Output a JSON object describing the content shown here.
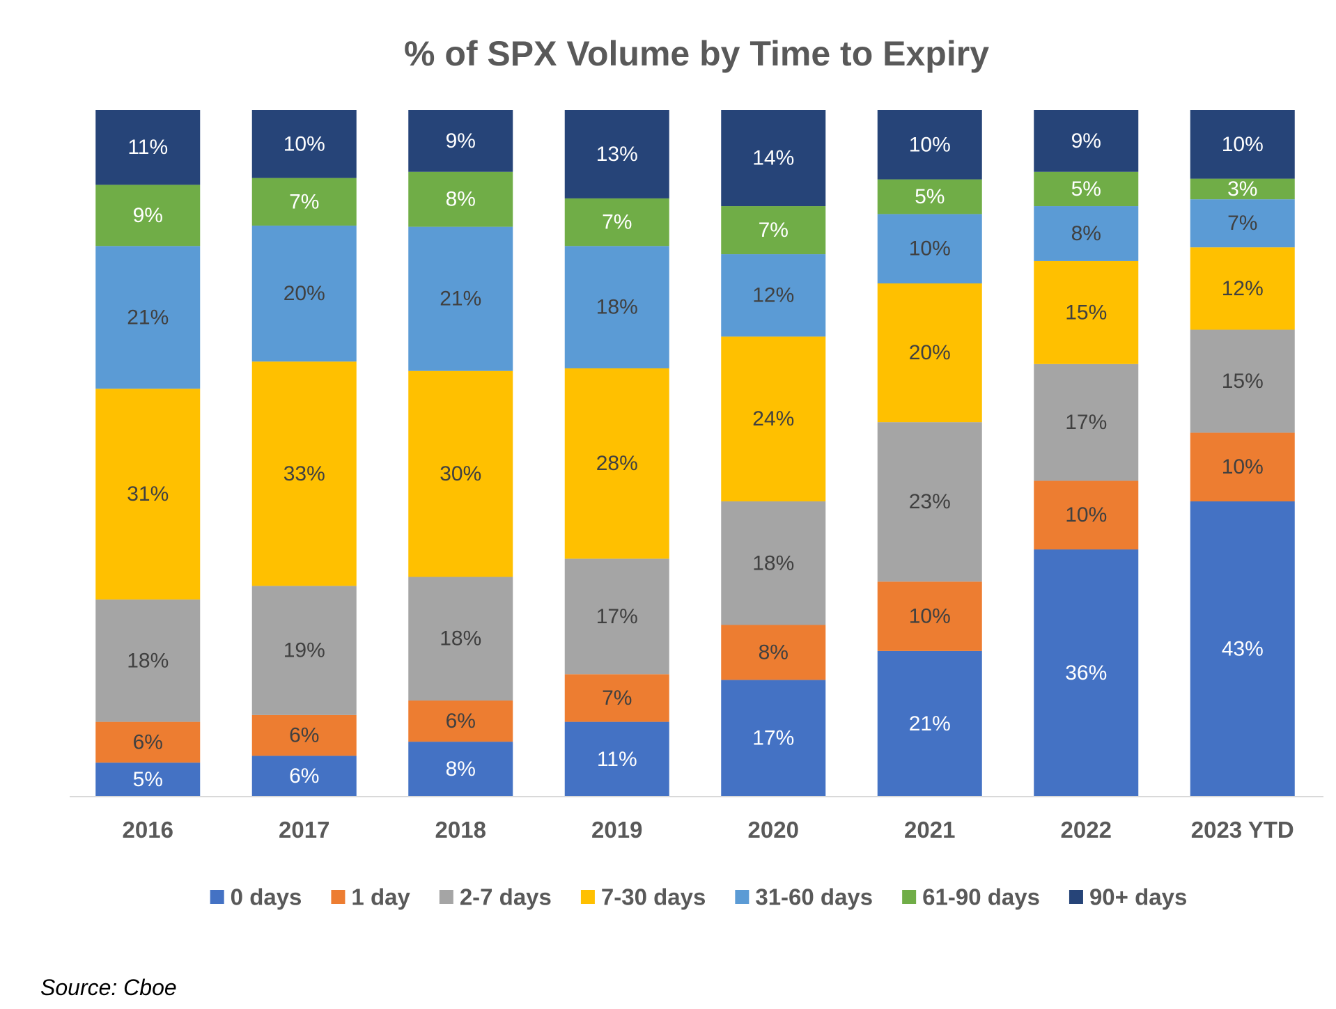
{
  "chart_data": {
    "type": "bar",
    "stacked": true,
    "title": "% of SPX Volume by Time to Expiry",
    "xlabel": "",
    "ylabel": "",
    "ylim": [
      0,
      100
    ],
    "grid": false,
    "legend_position": "bottom",
    "categories": [
      "2016",
      "2017",
      "2018",
      "2019",
      "2020",
      "2021",
      "2022",
      "2023 YTD"
    ],
    "series": [
      {
        "name": "0 days",
        "color": "#4472C4",
        "label_color": "#ffffff",
        "values": [
          5,
          6,
          8,
          11,
          17,
          21,
          36,
          43
        ]
      },
      {
        "name": "1 day",
        "color": "#ED7D31",
        "label_color": "#404040",
        "values": [
          6,
          6,
          6,
          7,
          8,
          10,
          10,
          10
        ]
      },
      {
        "name": "2-7 days",
        "color": "#A5A5A5",
        "label_color": "#404040",
        "values": [
          18,
          19,
          18,
          17,
          18,
          23,
          17,
          15
        ]
      },
      {
        "name": "7-30 days",
        "color": "#FFC000",
        "label_color": "#404040",
        "values": [
          31,
          33,
          30,
          28,
          24,
          20,
          15,
          12
        ]
      },
      {
        "name": "31-60 days",
        "color": "#5B9BD5",
        "label_color": "#404040",
        "values": [
          21,
          20,
          21,
          18,
          12,
          10,
          8,
          7
        ]
      },
      {
        "name": "61-90 days",
        "color": "#70AD47",
        "label_color": "#ffffff",
        "values": [
          9,
          7,
          8,
          7,
          7,
          5,
          5,
          3
        ]
      },
      {
        "name": "90+ days",
        "color": "#264478",
        "label_color": "#ffffff",
        "values": [
          11,
          10,
          9,
          13,
          14,
          10,
          9,
          10
        ]
      }
    ],
    "value_suffix": "%"
  },
  "source_note": "Source: Cboe"
}
